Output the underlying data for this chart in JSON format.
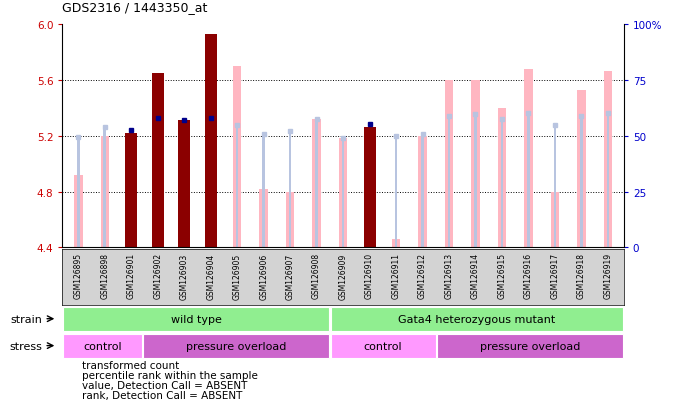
{
  "title": "GDS2316 / 1443350_at",
  "samples": [
    "GSM126895",
    "GSM126898",
    "GSM126901",
    "GSM126902",
    "GSM126903",
    "GSM126904",
    "GSM126905",
    "GSM126906",
    "GSM126907",
    "GSM126908",
    "GSM126909",
    "GSM126910",
    "GSM126911",
    "GSM126912",
    "GSM126913",
    "GSM126914",
    "GSM126915",
    "GSM126916",
    "GSM126917",
    "GSM126918",
    "GSM126919"
  ],
  "transformed_count": [
    null,
    null,
    5.22,
    5.65,
    5.31,
    5.93,
    null,
    null,
    null,
    null,
    null,
    5.26,
    null,
    null,
    null,
    null,
    null,
    null,
    null,
    null,
    null
  ],
  "percentile_rank": [
    null,
    null,
    5.24,
    5.325,
    5.31,
    5.325,
    null,
    null,
    null,
    null,
    null,
    5.285,
    null,
    null,
    null,
    null,
    null,
    null,
    null,
    null,
    null
  ],
  "absent_value": [
    4.92,
    5.2,
    null,
    null,
    null,
    null,
    5.7,
    4.82,
    4.8,
    5.32,
    5.18,
    null,
    4.46,
    5.2,
    5.6,
    5.6,
    5.4,
    5.68,
    4.8,
    5.53,
    5.66
  ],
  "absent_rank_val": [
    5.19,
    5.265,
    null,
    null,
    null,
    null,
    5.275,
    5.215,
    5.235,
    5.32,
    5.18,
    null,
    5.2,
    5.215,
    5.34,
    5.355,
    5.32,
    5.36,
    5.275,
    5.34,
    5.36
  ],
  "ylim_left": [
    4.4,
    6.0
  ],
  "yticks_left": [
    4.4,
    4.8,
    5.2,
    5.6,
    6.0
  ],
  "yticks_right": [
    0,
    25,
    50,
    75,
    100
  ],
  "yticklabels_right": [
    "0",
    "25",
    "50",
    "75",
    "100%"
  ],
  "dotted_lines": [
    4.8,
    5.2,
    5.6
  ],
  "bar_width": 0.45,
  "absent_bar_width": 0.32,
  "rank_bar_width": 0.1,
  "base_value": 4.4,
  "color_darkred": "#8B0000",
  "color_darkblue": "#00008B",
  "color_lightpink": "#FFB6C1",
  "color_lightblue": "#B8C4E0",
  "color_wildtype": "#90EE90",
  "color_control": "#FF99FF",
  "color_pressure": "#CC66CC",
  "color_samplebg": "#D3D3D3",
  "tick_color_left": "#CC0000",
  "tick_color_right": "#0000CC",
  "legend_labels": [
    "transformed count",
    "percentile rank within the sample",
    "value, Detection Call = ABSENT",
    "rank, Detection Call = ABSENT"
  ],
  "legend_colors": [
    "#8B0000",
    "#00008B",
    "#FFB6C1",
    "#B8C4E0"
  ]
}
